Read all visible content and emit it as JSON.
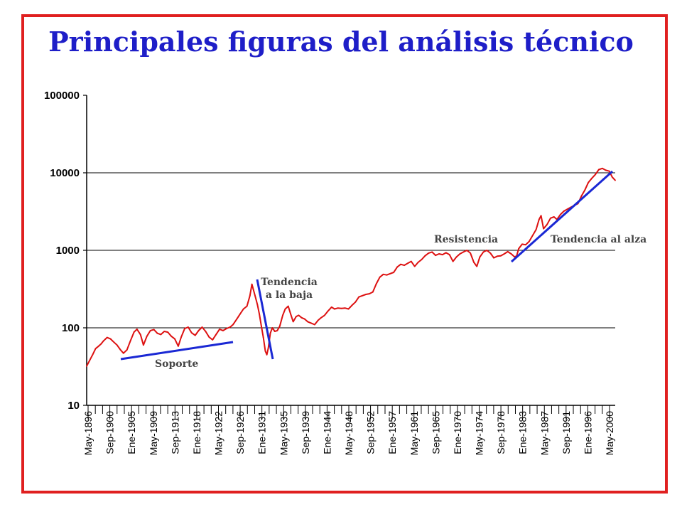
{
  "title": "Principales figuras del análisis técnico",
  "colors": {
    "frame": "#e02020",
    "title": "#1e1ec8",
    "series": "#dd1111",
    "trendlines": "#1a28d4",
    "grid": "#000000"
  },
  "chart_data": {
    "type": "line",
    "title": "Principales figuras del análisis técnico",
    "xlabel": "",
    "ylabel": "",
    "yscale": "log",
    "ylim": [
      10,
      100000
    ],
    "y_ticks": [
      "10",
      "100",
      "1000",
      "10000",
      "100000"
    ],
    "grid": "horizontal at 100, 1000, 10000",
    "x_tick_labels": [
      "May-1896",
      "Sep-1900",
      "Ene-1905",
      "May-1909",
      "Sep-1913",
      "Ene-1918",
      "May-1922",
      "Sep-1926",
      "Ene-1931",
      "May-1935",
      "Sep-1939",
      "Ene-1944",
      "May-1948",
      "Sep-1952",
      "Ene-1957",
      "May-1961",
      "Sep-1965",
      "Ene-1970",
      "May-1974",
      "Sep-1978",
      "Ene-1983",
      "May-1987",
      "Sep-1991",
      "Ene-1996",
      "May-2000"
    ],
    "xlim": [
      1896.4,
      2002.6
    ],
    "series": [
      {
        "x": [
          1896.4,
          1897.0,
          1897.6,
          1898.2,
          1898.8,
          1899.3,
          1899.8,
          1900.5,
          1901.2,
          1901.8,
          1902.5,
          1903.2,
          1903.8,
          1904.5,
          1905.2,
          1905.9,
          1906.5,
          1907.2,
          1907.8,
          1908.5,
          1909.2,
          1909.9,
          1910.6,
          1911.3,
          1912.0,
          1912.7,
          1913.4,
          1914.1,
          1914.8,
          1915.4,
          1916.1,
          1916.8,
          1917.5,
          1918.2,
          1918.9,
          1919.6,
          1920.3,
          1921.0,
          1921.7,
          1922.4,
          1923.1,
          1923.8,
          1924.5,
          1925.2,
          1925.8,
          1926.5,
          1927.2,
          1927.9,
          1928.6,
          1929.2,
          1929.6,
          1929.9,
          1930.3,
          1930.7,
          1931.1,
          1931.5,
          1931.9,
          1932.3,
          1932.6,
          1932.9,
          1933.3,
          1933.7,
          1934.2,
          1934.7,
          1935.2,
          1935.8,
          1936.3,
          1936.9,
          1937.4,
          1937.9,
          1938.5,
          1939.0,
          1939.6,
          1940.2,
          1940.8,
          1941.5,
          1942.2,
          1942.9,
          1943.5,
          1944.2,
          1944.9,
          1945.6,
          1946.2,
          1946.9,
          1947.6,
          1948.3,
          1949.0,
          1949.7,
          1950.4,
          1951.1,
          1951.8,
          1952.5,
          1953.2,
          1953.9,
          1954.6,
          1955.3,
          1956.0,
          1956.7,
          1957.4,
          1958.1,
          1958.8,
          1959.5,
          1960.2,
          1960.9,
          1961.6,
          1962.3,
          1963.0,
          1963.7,
          1964.4,
          1965.1,
          1965.8,
          1966.5,
          1967.2,
          1967.9,
          1968.6,
          1969.3,
          1970.0,
          1970.7,
          1971.4,
          1972.1,
          1972.8,
          1973.5,
          1974.2,
          1974.8,
          1975.4,
          1976.1,
          1976.8,
          1977.5,
          1978.2,
          1978.9,
          1979.6,
          1980.3,
          1981.0,
          1981.7,
          1982.4,
          1982.8,
          1983.2,
          1983.9,
          1984.6,
          1985.3,
          1986.0,
          1986.7,
          1987.3,
          1987.7,
          1988.2,
          1988.9,
          1989.6,
          1990.3,
          1990.9,
          1991.6,
          1992.3,
          1993.0,
          1993.7,
          1994.4,
          1995.1,
          1995.8,
          1996.5,
          1997.2,
          1997.9,
          1998.6,
          1999.3,
          2000.0,
          2000.7,
          2001.4,
          2002.0,
          2002.6
        ],
        "values": [
          32,
          38,
          45,
          54,
          58,
          62,
          68,
          75,
          72,
          66,
          60,
          52,
          47,
          52,
          68,
          88,
          96,
          82,
          60,
          78,
          92,
          95,
          85,
          82,
          90,
          88,
          78,
          72,
          58,
          76,
          98,
          102,
          86,
          80,
          92,
          102,
          90,
          76,
          70,
          82,
          96,
          92,
          98,
          102,
          110,
          128,
          150,
          175,
          190,
          260,
          365,
          310,
          250,
          200,
          150,
          105,
          75,
          50,
          45,
          55,
          85,
          100,
          90,
          92,
          105,
          145,
          175,
          190,
          150,
          120,
          140,
          145,
          135,
          130,
          120,
          115,
          110,
          125,
          135,
          145,
          165,
          185,
          175,
          180,
          178,
          180,
          175,
          195,
          215,
          250,
          260,
          270,
          275,
          290,
          370,
          450,
          490,
          480,
          500,
          520,
          610,
          660,
          640,
          680,
          720,
          620,
          700,
          760,
          850,
          920,
          950,
          860,
          900,
          880,
          930,
          880,
          720,
          820,
          900,
          950,
          1000,
          920,
          700,
          620,
          820,
          950,
          1000,
          920,
          800,
          840,
          850,
          900,
          960,
          900,
          820,
          850,
          1050,
          1200,
          1180,
          1300,
          1550,
          1850,
          2500,
          2800,
          1900,
          2150,
          2600,
          2700,
          2500,
          2900,
          3200,
          3400,
          3600,
          3800,
          4000,
          5000,
          6000,
          7500,
          8500,
          9500,
          11000,
          11400,
          10800,
          10500,
          8800,
          8000
        ]
      }
    ],
    "annotations": [
      {
        "text": "Soporte",
        "type": "support"
      },
      {
        "text": "Tendencia",
        "text2": "a la baja",
        "type": "downtrend"
      },
      {
        "text": "Resistencia",
        "type": "resistance"
      },
      {
        "text": "Tendencia al alza",
        "type": "uptrend"
      }
    ]
  }
}
